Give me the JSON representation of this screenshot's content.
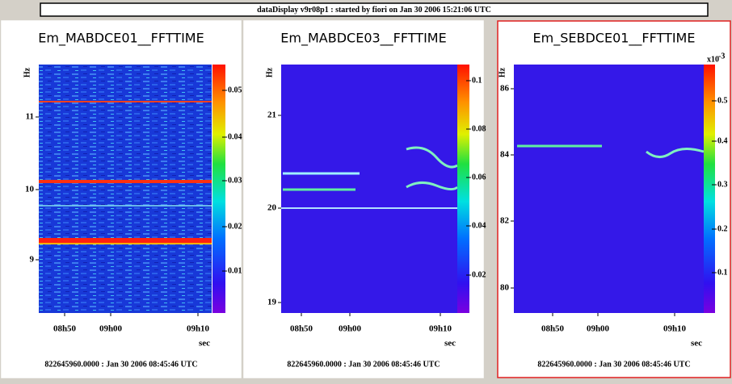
{
  "header": {
    "title": "dataDisplay v9r08p1 : started by fiori on Jan 30 2006 15:21:06 UTC"
  },
  "panels": [
    {
      "title": "Em_MABDCE01__FFTTIME",
      "y_axis_label": "Hz",
      "y_ticks": [
        "11",
        "10",
        "9"
      ],
      "x_ticks": [
        "08h50",
        "09h00",
        "09h10"
      ],
      "x_axis_label": "sec",
      "colorbar_ticks": [
        "0.05",
        "0.04",
        "0.03",
        "0.02",
        "0.01"
      ],
      "footer": "822645960.0000 : Jan 30 2006 08:45:46 UTC"
    },
    {
      "title": "Em_MABDCE03__FFTTIME",
      "y_axis_label": "Hz",
      "y_ticks": [
        "21",
        "20",
        "19"
      ],
      "x_ticks": [
        "08h50",
        "09h00",
        "09h10"
      ],
      "x_axis_label": "sec",
      "colorbar_ticks": [
        "0.1",
        "0.08",
        "0.06",
        "0.04",
        "0.02"
      ],
      "footer": "822645960.0000 : Jan 30 2006 08:45:46 UTC"
    },
    {
      "title": "Em_SEBDCE01__FFTTIME",
      "y_axis_label": "Hz",
      "y_ticks": [
        "86",
        "84",
        "82",
        "80"
      ],
      "x_ticks": [
        "08h50",
        "09h00",
        "09h10"
      ],
      "x_axis_label": "sec",
      "colorbar_ticks": [
        "0.5",
        "0.4",
        "0.3",
        "0.2",
        "0.1"
      ],
      "colorbar_multiplier": {
        "base": "x10",
        "exponent": "-3"
      },
      "footer": "822645960.0000 : Jan 30 2006 08:45:46 UTC"
    }
  ]
}
